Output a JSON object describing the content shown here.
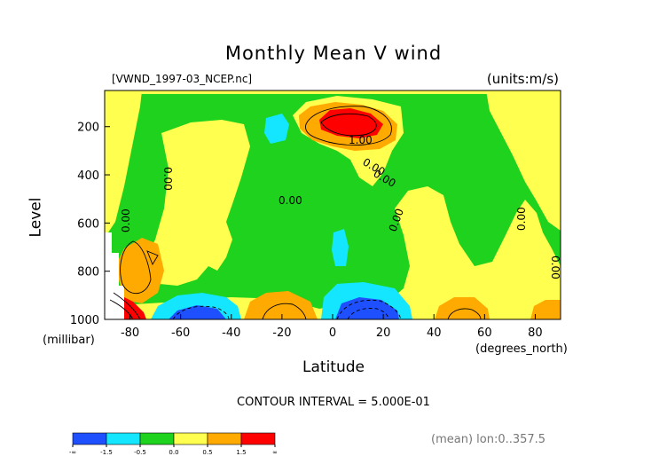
{
  "chart_data": {
    "type": "heatmap",
    "title": "Monthly Mean V wind",
    "file_label": "[VWND_1997-03_NCEP.nc]",
    "units_label": "(units:m/s)",
    "xlabel": "Latitude",
    "xunits": "(degrees_north)",
    "ylabel": "Level",
    "yunits": "(millibar)",
    "x_ticks": [
      -80,
      -60,
      -40,
      -20,
      0,
      20,
      40,
      60,
      80
    ],
    "y_ticks": [
      200,
      400,
      600,
      800,
      1000
    ],
    "xlim": [
      -90,
      90
    ],
    "ylim": [
      1000,
      50
    ],
    "contour_interval": "CONTOUR INTERVAL = 5.000E-01",
    "mean_label": "(mean) lon:0..357.5",
    "contour_labels": [
      "0.00",
      "0.00",
      "0.00",
      "0.00",
      "1.00",
      "0.00",
      "0.00",
      "0.00",
      "0.00"
    ],
    "legend": {
      "ticks": [
        "-∞",
        "-1.5",
        "-0.5",
        "0.0",
        "0.5",
        "1.5",
        "∞"
      ],
      "colors": [
        "#1e50ff",
        "#14e6ff",
        "#1ed21e",
        "#ffff50",
        "#ffaa00",
        "#ff0000"
      ]
    },
    "background_color": "#1ed21e"
  }
}
